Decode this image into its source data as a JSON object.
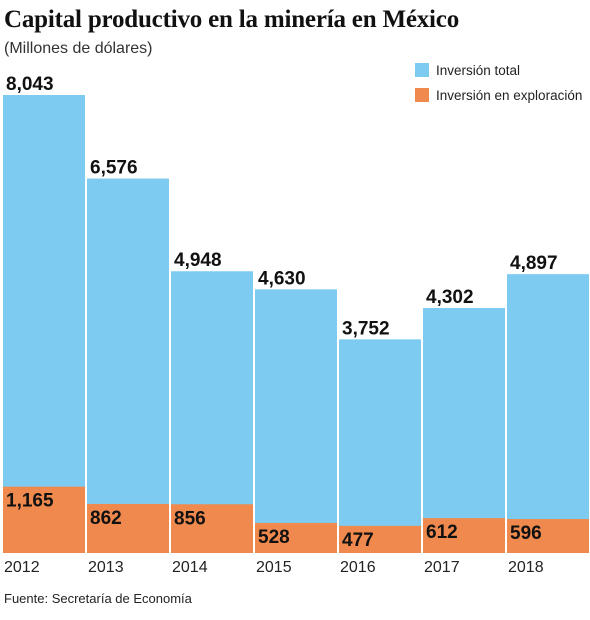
{
  "chart_data": {
    "type": "bar",
    "title": "Capital productivo en la minería en México",
    "subtitle": "(Millones de dólares)",
    "categories": [
      "2012",
      "2013",
      "2014",
      "2015",
      "2016",
      "2017",
      "2018"
    ],
    "series": [
      {
        "name": "Inversión total",
        "color": "#7ecbf2",
        "values": [
          8043,
          6576,
          4948,
          4630,
          3752,
          4302,
          4897
        ],
        "labels": [
          "8,043",
          "6,576",
          "4,948",
          "4,630",
          "3,752",
          "4,302",
          "4,897"
        ]
      },
      {
        "name": "Inversión en exploración",
        "color": "#f0894d",
        "values": [
          1165,
          862,
          856,
          528,
          477,
          612,
          596
        ],
        "labels": [
          "1,165",
          "862",
          "856",
          "528",
          "477",
          "612",
          "596"
        ]
      }
    ],
    "ylim": [
      0,
      8043
    ],
    "legend_position": "top-right",
    "grid": false,
    "xlabel": "",
    "ylabel": ""
  },
  "source": "Fuente: Secretaría de Economía"
}
